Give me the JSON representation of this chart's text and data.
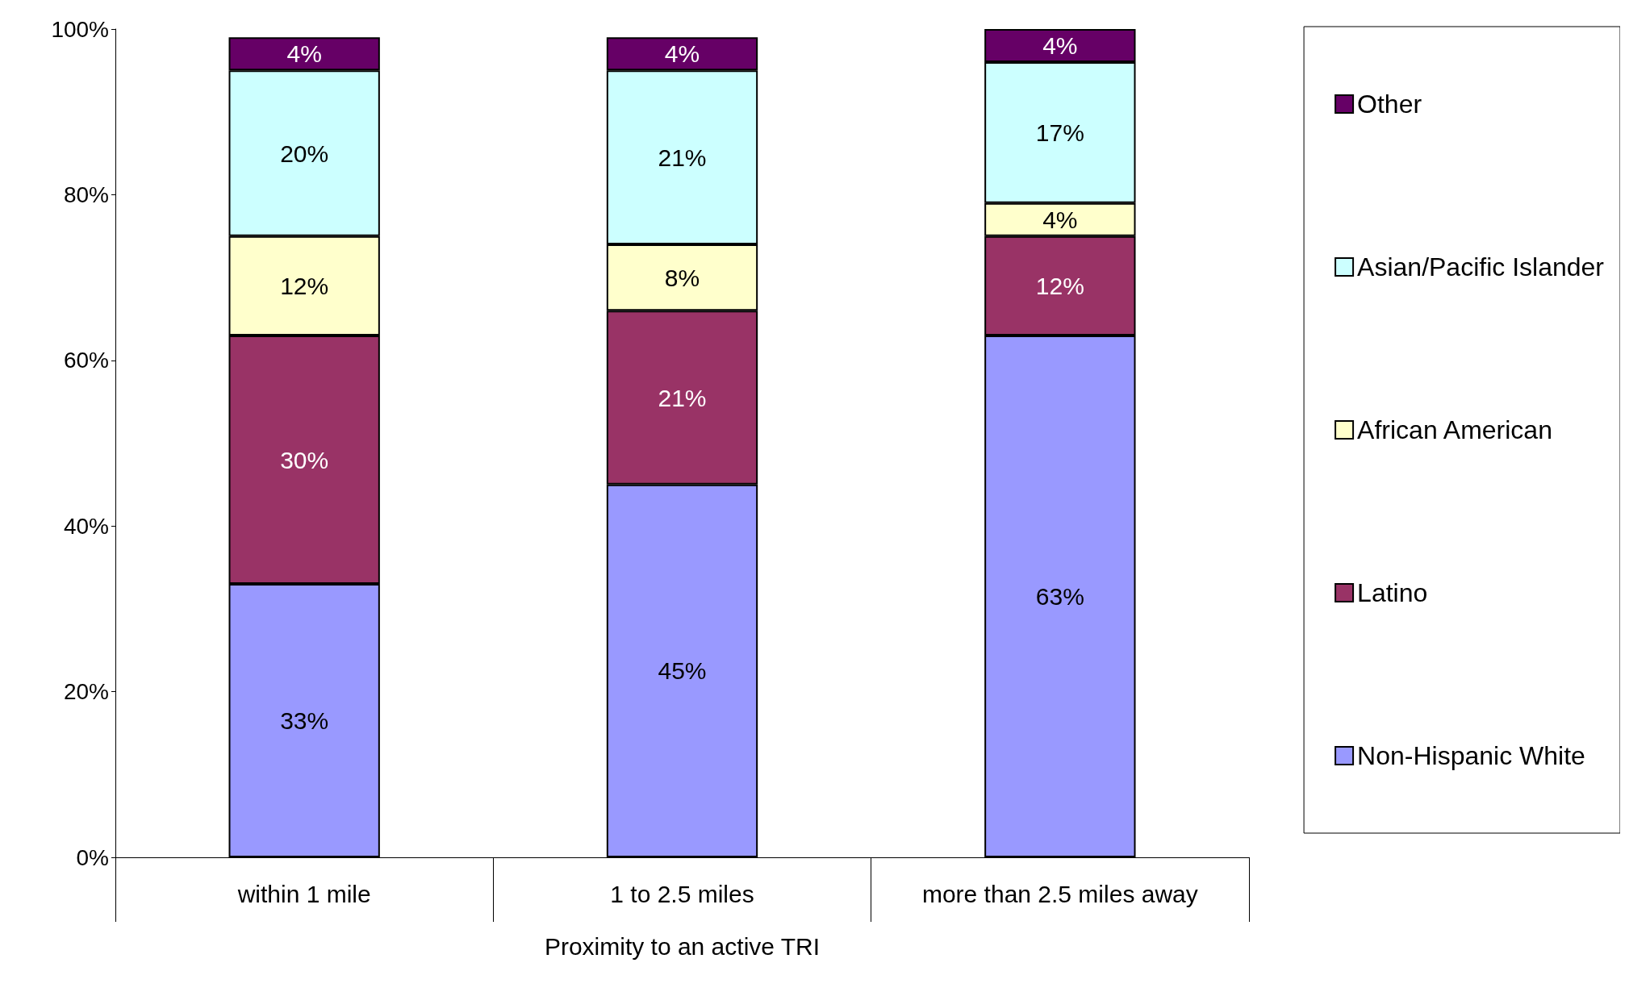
{
  "chart_data": {
    "type": "bar",
    "stacked": true,
    "xlabel": "Proximity to an active TRI",
    "categories": [
      "within 1 mile",
      "1 to 2.5 miles",
      "more than 2.5 miles away"
    ],
    "series": [
      {
        "name": "Non-Hispanic White",
        "color": "#9999ff",
        "values": [
          33,
          45,
          63
        ],
        "value_labels": [
          "33%",
          "45%",
          "63%"
        ]
      },
      {
        "name": "Latino",
        "color": "#993366",
        "values": [
          30,
          21,
          12
        ],
        "value_labels": [
          "30%",
          "21%",
          "12%"
        ]
      },
      {
        "name": "African American",
        "color": "#ffffcc",
        "values": [
          12,
          8,
          4
        ],
        "value_labels": [
          "12%",
          "8%",
          "4%"
        ]
      },
      {
        "name": "Asian/Pacific Islander",
        "color": "#ccffff",
        "values": [
          20,
          21,
          17
        ],
        "value_labels": [
          "20%",
          "21%",
          "17%"
        ]
      },
      {
        "name": "Other",
        "color": "#660066",
        "values": [
          4,
          4,
          4
        ],
        "value_labels": [
          "4%",
          "4%",
          "4%"
        ]
      }
    ],
    "ylim": [
      0,
      100
    ],
    "yticks": [
      {
        "value": 0,
        "label": "0%"
      },
      {
        "value": 20,
        "label": "20%"
      },
      {
        "value": 40,
        "label": "40%"
      },
      {
        "value": 60,
        "label": "60%"
      },
      {
        "value": 80,
        "label": "80%"
      },
      {
        "value": 100,
        "label": "100%"
      }
    ],
    "legend": "right"
  }
}
